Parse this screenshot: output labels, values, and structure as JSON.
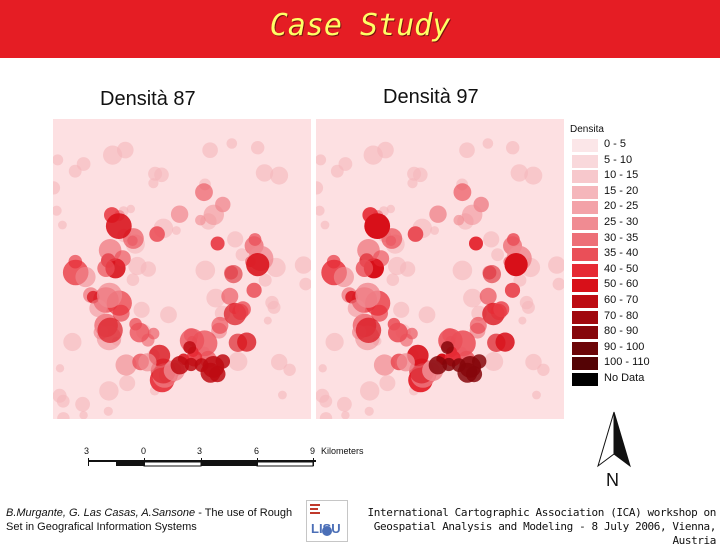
{
  "header": {
    "title": "Case Study",
    "background": "#e51d24",
    "title_color": "#ffff66"
  },
  "maps": [
    {
      "title": "Densità 87"
    },
    {
      "title": "Densità 97"
    }
  ],
  "legend": {
    "title": "Densita",
    "items": [
      {
        "label": "0 - 5",
        "color": "#fbe6e8"
      },
      {
        "label": "5 - 10",
        "color": "#f9d8db"
      },
      {
        "label": "10 - 15",
        "color": "#f7c8cc"
      },
      {
        "label": "15 - 20",
        "color": "#f5b6bb"
      },
      {
        "label": "20 - 25",
        "color": "#f3a2a8"
      },
      {
        "label": "25 - 30",
        "color": "#f08b92"
      },
      {
        "label": "30 - 35",
        "color": "#ed6f77"
      },
      {
        "label": "35 - 40",
        "color": "#ea4f58"
      },
      {
        "label": "40 - 50",
        "color": "#e62a34"
      },
      {
        "label": "50 - 60",
        "color": "#d81019"
      },
      {
        "label": "60 - 70",
        "color": "#bd0b12"
      },
      {
        "label": "70 - 80",
        "color": "#a1080e"
      },
      {
        "label": "80 - 90",
        "color": "#86060b"
      },
      {
        "label": "90 - 100",
        "color": "#6c0508"
      },
      {
        "label": "100 - 110",
        "color": "#540305"
      },
      {
        "label": "No Data",
        "color": "#000000"
      }
    ]
  },
  "scalebar": {
    "ticks": [
      "3",
      "0",
      "3",
      "6",
      "9"
    ],
    "unit": "Kilometers"
  },
  "north_arrow": {
    "label": "N"
  },
  "footer": {
    "authors": "B.Murgante, G. Las Casas, A.Sansone",
    "title_text": " - The use of Rough Set in Geografical Information Systems",
    "logo_text": "LISU",
    "right_text": "International Cartographic Association (ICA) workshop on Geospatial Analysis and Modeling - 8 July 2006, Vienna, Austria"
  }
}
